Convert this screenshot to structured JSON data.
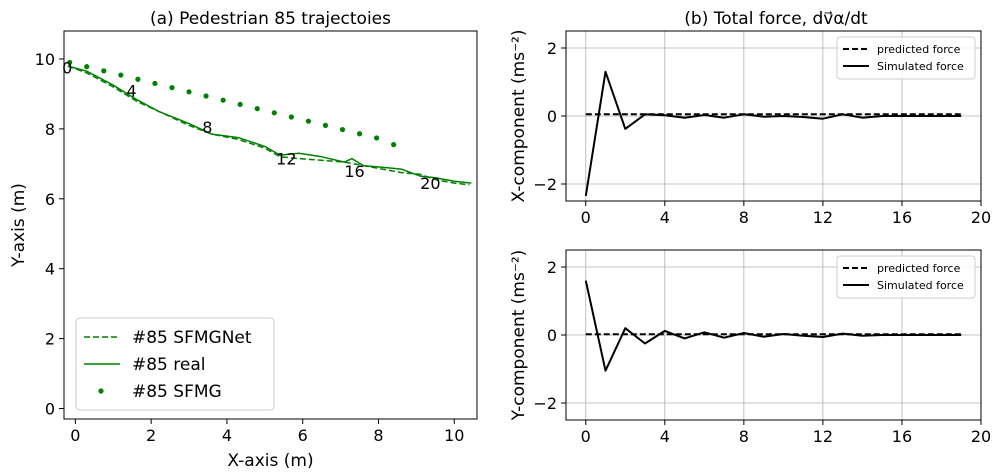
{
  "chart_data": [
    {
      "type": "line",
      "title": "(a) Pedestrian 85 trajectoies",
      "xlabel": "X-axis (m)",
      "ylabel": "Y-axis (m)",
      "xlim": [
        -0.3,
        10.6
      ],
      "ylim": [
        -0.3,
        10.8
      ],
      "xticks": [
        0,
        2,
        4,
        6,
        8,
        10
      ],
      "yticks": [
        0,
        2,
        4,
        6,
        8,
        10
      ],
      "grid": false,
      "legend_position": "lower-left",
      "series": [
        {
          "name": "#85 SFMGNet",
          "style": "dashed",
          "color": "#008000",
          "x": [
            -0.2,
            0.3,
            1.0,
            1.6,
            2.2,
            3.0,
            3.6,
            4.3,
            5.0,
            5.4,
            5.9,
            6.5,
            7.1,
            7.6,
            8.1,
            8.6,
            9.1,
            9.5,
            10.0,
            10.4
          ],
          "y": [
            9.8,
            9.6,
            9.2,
            8.8,
            8.5,
            8.1,
            7.85,
            7.7,
            7.45,
            7.2,
            7.15,
            7.1,
            7.05,
            6.95,
            6.85,
            6.75,
            6.7,
            6.55,
            6.45,
            6.4
          ]
        },
        {
          "name": "#85 real",
          "style": "solid",
          "color": "#008000",
          "x": [
            -0.2,
            0.3,
            1.0,
            1.6,
            2.2,
            3.0,
            3.6,
            4.3,
            5.0,
            5.4,
            5.9,
            6.5,
            7.1,
            7.3,
            7.6,
            8.1,
            8.6,
            9.1,
            9.5,
            10.0,
            10.45
          ],
          "y": [
            9.8,
            9.65,
            9.25,
            8.85,
            8.5,
            8.15,
            7.85,
            7.75,
            7.5,
            7.25,
            7.3,
            7.2,
            7.05,
            7.15,
            6.95,
            6.9,
            6.85,
            6.65,
            6.6,
            6.5,
            6.45
          ]
        },
        {
          "name": "#85 SFMG",
          "style": "dots",
          "color": "#008000",
          "x": [
            -0.15,
            0.3,
            0.75,
            1.2,
            1.65,
            2.1,
            2.55,
            3.0,
            3.45,
            3.9,
            4.35,
            4.8,
            5.25,
            5.7,
            6.15,
            6.6,
            7.05,
            7.5,
            7.95,
            8.4
          ],
          "y": [
            9.9,
            9.78,
            9.66,
            9.54,
            9.42,
            9.3,
            9.18,
            9.06,
            8.94,
            8.82,
            8.7,
            8.58,
            8.46,
            8.34,
            8.22,
            8.1,
            7.98,
            7.86,
            7.74,
            7.55
          ]
        }
      ],
      "annotations": [
        {
          "text": "0",
          "x": -0.35,
          "y": 9.75
        },
        {
          "text": "4",
          "x": 1.35,
          "y": 9.1
        },
        {
          "text": "8",
          "x": 3.35,
          "y": 8.05
        },
        {
          "text": "12",
          "x": 5.3,
          "y": 7.15
        },
        {
          "text": "16",
          "x": 7.1,
          "y": 6.8
        },
        {
          "text": "20",
          "x": 9.1,
          "y": 6.45
        }
      ]
    },
    {
      "type": "line",
      "title": "(b) Total force, ",
      "title_math": "dv⃗α/dt",
      "ylabel": "X-component (ms⁻²)",
      "xlabel": "",
      "xlim": [
        -1,
        20
      ],
      "ylim": [
        -2.5,
        2.5
      ],
      "xticks": [
        0,
        4,
        8,
        12,
        16,
        20
      ],
      "yticks": [
        -2,
        0,
        2
      ],
      "grid": true,
      "legend_position": "top-right",
      "series": [
        {
          "name": "predicted force",
          "style": "dashed",
          "color": "#000000",
          "x": [
            0,
            1,
            2,
            3,
            4,
            5,
            6,
            7,
            8,
            9,
            10,
            11,
            12,
            13,
            14,
            15,
            16,
            17,
            18,
            19
          ],
          "y": [
            0.05,
            0.05,
            0.05,
            0.05,
            0.05,
            0.05,
            0.05,
            0.05,
            0.05,
            0.05,
            0.05,
            0.05,
            0.05,
            0.05,
            0.05,
            0.05,
            0.05,
            0.05,
            0.05,
            0.05
          ]
        },
        {
          "name": "Simulated force",
          "style": "solid",
          "color": "#000000",
          "x": [
            0,
            1,
            2,
            3,
            4,
            5,
            6,
            7,
            8,
            9,
            10,
            11,
            12,
            13,
            14,
            15,
            16,
            17,
            18,
            19
          ],
          "y": [
            -2.35,
            1.3,
            -0.38,
            0.05,
            0.02,
            -0.05,
            0.03,
            -0.05,
            0.05,
            -0.02,
            0.0,
            -0.03,
            -0.08,
            0.05,
            -0.05,
            0.0,
            0.0,
            0.0,
            0.0,
            0.0
          ]
        }
      ]
    },
    {
      "type": "line",
      "title": "",
      "ylabel": "Y-component (ms⁻²)",
      "xlabel": "",
      "xlim": [
        -1,
        20
      ],
      "ylim": [
        -2.5,
        2.5
      ],
      "xticks": [
        0,
        4,
        8,
        12,
        16,
        20
      ],
      "yticks": [
        -2,
        0,
        2
      ],
      "grid": true,
      "legend_position": "top-right",
      "series": [
        {
          "name": "predicted force",
          "style": "dashed",
          "color": "#000000",
          "x": [
            0,
            1,
            2,
            3,
            4,
            5,
            6,
            7,
            8,
            9,
            10,
            11,
            12,
            13,
            14,
            15,
            16,
            17,
            18,
            19
          ],
          "y": [
            0.02,
            0.02,
            0.02,
            0.02,
            0.02,
            0.02,
            0.02,
            0.02,
            0.02,
            0.02,
            0.02,
            0.02,
            0.02,
            0.02,
            0.02,
            0.02,
            0.02,
            0.02,
            0.02,
            0.02
          ]
        },
        {
          "name": "Simulated force",
          "style": "solid",
          "color": "#000000",
          "x": [
            0,
            1,
            2,
            3,
            4,
            5,
            6,
            7,
            8,
            9,
            10,
            11,
            12,
            13,
            14,
            15,
            16,
            17,
            18,
            19
          ],
          "y": [
            1.6,
            -1.05,
            0.2,
            -0.25,
            0.12,
            -0.1,
            0.08,
            -0.08,
            0.06,
            -0.05,
            0.03,
            -0.02,
            -0.06,
            0.04,
            -0.02,
            0.0,
            0.0,
            0.0,
            0.0,
            0.0
          ]
        }
      ]
    }
  ]
}
